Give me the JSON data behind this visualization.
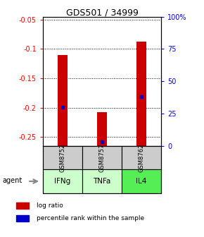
{
  "title": "GDS501 / 34999",
  "samples": [
    "GSM8752",
    "GSM8757",
    "GSM8762"
  ],
  "agents": [
    "IFNg",
    "TNFa",
    "IL4"
  ],
  "log_ratios": [
    -0.11,
    -0.208,
    -0.088
  ],
  "percentile_ranks": [
    30,
    3,
    38
  ],
  "ylim_left": [
    -0.265,
    -0.045
  ],
  "ylim_right": [
    0,
    100
  ],
  "yticks_left": [
    -0.25,
    -0.2,
    -0.15,
    -0.1,
    -0.05
  ],
  "yticks_right": [
    0,
    25,
    50,
    75,
    100
  ],
  "ytick_labels_left": [
    "-0.25",
    "-0.2",
    "-0.15",
    "-0.1",
    "-0.05"
  ],
  "ytick_labels_right": [
    "0",
    "25",
    "50",
    "75",
    "100%"
  ],
  "bar_color": "#cc0000",
  "dot_color": "#0000cc",
  "sample_bg": "#cccccc",
  "agent_bg_colors": [
    "#ccffcc",
    "#ccffcc",
    "#55ee55"
  ],
  "legend_bar_label": "log ratio",
  "legend_dot_label": "percentile rank within the sample",
  "bar_width": 0.08
}
